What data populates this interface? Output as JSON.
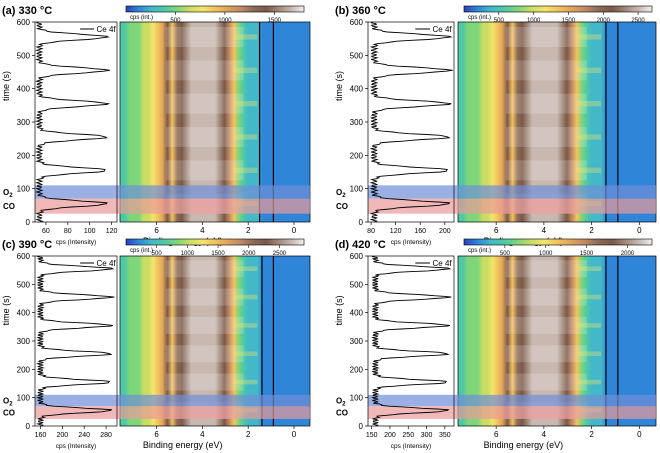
{
  "figure": {
    "colorbar_label": "cps (int.)",
    "band_labels": {
      "o2": "O",
      "o2_sub": "2",
      "co": "CO"
    },
    "colors": {
      "o2_band": "#6f8fd8",
      "co_band": "#e99a9a",
      "colormap": [
        "#2e3fb8",
        "#2f86d8",
        "#43b8c8",
        "#4ec9a6",
        "#7fd57a",
        "#c9dd63",
        "#f3e56a",
        "#f2c35e",
        "#e0a45a",
        "#c08a66",
        "#8c6c58",
        "#7a5848",
        "#a08878",
        "#c8b8b0",
        "#f2eeee"
      ],
      "marker_lines": "#000000",
      "profile_line": "#000000"
    }
  },
  "chart_data": [
    {
      "type": "heatmap",
      "panel": "(a) 330 °C",
      "profile_legend": "Ce 4f",
      "ylabel": "time (s)",
      "ylim": [
        0,
        600
      ],
      "yticks": [
        0,
        100,
        200,
        300,
        400,
        500,
        600
      ],
      "profile_xlabel": "cps (Intensity)",
      "profile_xlim": [
        50,
        125
      ],
      "profile_xticks": [
        60,
        80,
        100,
        120
      ],
      "xlabel": "Binding energy (eV)",
      "xlim": [
        7.6,
        -0.7
      ],
      "xticks": [
        6,
        4,
        2,
        0
      ],
      "colorbar_range": [
        0,
        1800
      ],
      "colorbar_ticks": [
        500,
        1000,
        1500
      ],
      "marker_lines_eV": [
        1.5,
        0.9
      ],
      "o2_band_s": [
        70,
        110
      ],
      "co_band_s": [
        25,
        70
      ],
      "profile_peaks_s": [
        55,
        155,
        255,
        355,
        455,
        555
      ],
      "profile_base": 54,
      "profile_peak": 116
    },
    {
      "type": "heatmap",
      "panel": "(b) 360 °C",
      "profile_legend": "Ce 4f",
      "ylabel": "time (s)",
      "ylim": [
        0,
        600
      ],
      "yticks": [
        0,
        100,
        200,
        300,
        400,
        500,
        600
      ],
      "profile_xlabel": "cps (Intensity)",
      "profile_xlim": [
        75,
        215
      ],
      "profile_xticks": [
        80,
        120,
        160,
        200
      ],
      "xlabel": "Binding energy (eV)",
      "xlim": [
        7.6,
        -0.7
      ],
      "xticks": [
        6,
        4,
        2,
        0
      ],
      "colorbar_range": [
        0,
        2700
      ],
      "colorbar_ticks": [
        500,
        1000,
        1500,
        2000,
        2500
      ],
      "marker_lines_eV": [
        1.4,
        0.9
      ],
      "o2_band_s": [
        70,
        110
      ],
      "co_band_s": [
        25,
        70
      ],
      "profile_peaks_s": [
        55,
        155,
        255,
        355,
        455,
        555
      ],
      "profile_base": 85,
      "profile_peak": 208
    },
    {
      "type": "heatmap",
      "panel": "(c) 390 °C",
      "profile_legend": "Ce 4f",
      "ylabel": "time (s)",
      "ylim": [
        0,
        600
      ],
      "yticks": [
        0,
        100,
        200,
        300,
        400,
        500,
        600
      ],
      "profile_xlabel": "cps (Intensity)",
      "profile_xlim": [
        150,
        300
      ],
      "profile_xticks": [
        160,
        200,
        240,
        280
      ],
      "xlabel": "Binding energy (eV)",
      "xlim": [
        7.6,
        -0.7
      ],
      "xticks": [
        6,
        4,
        2,
        0
      ],
      "colorbar_range": [
        0,
        2900
      ],
      "colorbar_ticks": [
        500,
        1000,
        1500,
        2000,
        2500
      ],
      "marker_lines_eV": [
        1.4,
        0.9
      ],
      "o2_band_s": [
        70,
        110
      ],
      "co_band_s": [
        25,
        70
      ],
      "profile_peaks_s": [
        55,
        155,
        255,
        355,
        455,
        555
      ],
      "profile_base": 160,
      "profile_peak": 290
    },
    {
      "type": "heatmap",
      "panel": "(d) 420 °C",
      "profile_legend": "Ce 4f",
      "ylabel": "time (s)",
      "ylim": [
        0,
        600
      ],
      "yticks": [
        0,
        100,
        200,
        300,
        400,
        500,
        600
      ],
      "profile_xlabel": "cps (Intensity)",
      "profile_xlim": [
        140,
        375
      ],
      "profile_xticks": [
        150,
        200,
        250,
        300,
        350
      ],
      "xlabel": "Binding energy (eV)",
      "xlim": [
        7.6,
        -0.7
      ],
      "xticks": [
        6,
        4,
        2,
        0
      ],
      "colorbar_range": [
        0,
        2300
      ],
      "colorbar_ticks": [
        500,
        1000,
        1500,
        2000
      ],
      "marker_lines_eV": [
        1.4,
        0.9
      ],
      "o2_band_s": [
        70,
        110
      ],
      "co_band_s": [
        25,
        70
      ],
      "profile_peaks_s": [
        55,
        155,
        255,
        355,
        455,
        555
      ],
      "profile_base": 160,
      "profile_peak": 360
    }
  ]
}
